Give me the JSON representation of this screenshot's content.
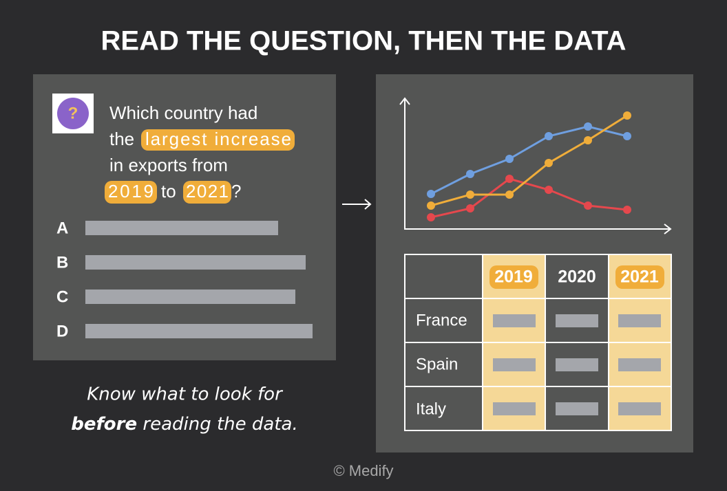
{
  "title": "READ THE QUESTION, THEN THE DATA",
  "question": {
    "icon": "?",
    "lines": [
      [
        "Which country had"
      ],
      [
        "the",
        "largest increase"
      ],
      [
        "in exports from"
      ],
      [
        "2019",
        "to",
        "2021",
        "?"
      ]
    ]
  },
  "options": [
    "A",
    "B",
    "C",
    "D"
  ],
  "caption": {
    "line1": "Know what to look for",
    "bold": "before",
    "rest": "reading the data."
  },
  "table": {
    "header": [
      "2019",
      "2020",
      "2021"
    ],
    "rows": [
      "France",
      "Spain",
      "Italy"
    ]
  },
  "footer": "© Medify"
}
